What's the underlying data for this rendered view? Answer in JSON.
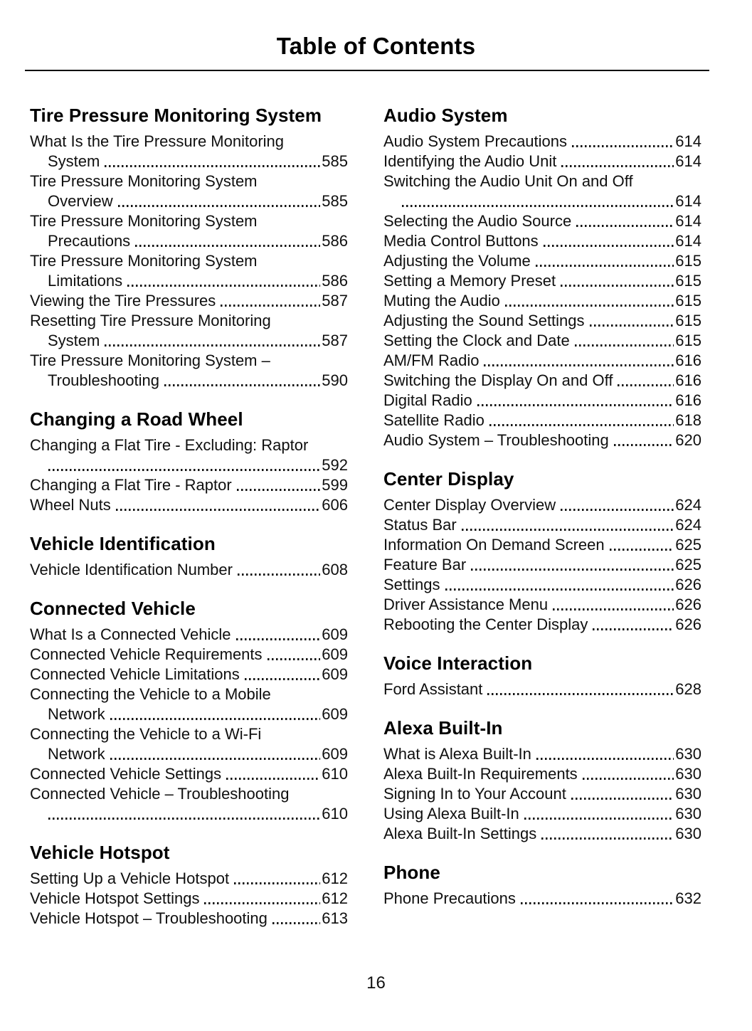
{
  "page": {
    "title": "Table of Contents",
    "page_number": "16"
  },
  "colors": {
    "text": "#0f0f0f",
    "background": "#ffffff",
    "rule": "#000000"
  },
  "toc": {
    "left": [
      {
        "heading": "Tire Pressure Monitoring System",
        "entries": [
          {
            "line1": "What Is the Tire Pressure Monitoring",
            "line2": "System",
            "wrapped": true,
            "page": "585"
          },
          {
            "line1": "Tire Pressure Monitoring System",
            "line2": "Overview",
            "wrapped": true,
            "page": "585"
          },
          {
            "line1": "Tire Pressure Monitoring System",
            "line2": "Precautions",
            "wrapped": true,
            "page": "586"
          },
          {
            "line1": "Tire Pressure Monitoring System",
            "line2": "Limitations",
            "wrapped": true,
            "page": "586"
          },
          {
            "line1": "Viewing the Tire Pressures",
            "line2": "",
            "wrapped": false,
            "page": "587"
          },
          {
            "line1": "Resetting Tire Pressure Monitoring",
            "line2": "System",
            "wrapped": true,
            "page": "587"
          },
          {
            "line1": "Tire Pressure Monitoring System –",
            "line2": "Troubleshooting",
            "wrapped": true,
            "page": "590"
          }
        ]
      },
      {
        "heading": "Changing a Road Wheel",
        "entries": [
          {
            "line1": "Changing a Flat Tire - Excluding: Raptor",
            "line2": "",
            "wrapped": true,
            "page": "592"
          },
          {
            "line1": "Changing a Flat Tire - Raptor",
            "line2": "",
            "wrapped": false,
            "page": "599"
          },
          {
            "line1": "Wheel Nuts",
            "line2": "",
            "wrapped": false,
            "page": "606"
          }
        ]
      },
      {
        "heading": "Vehicle Identification",
        "entries": [
          {
            "line1": "Vehicle Identification Number",
            "line2": "",
            "wrapped": false,
            "page": "608"
          }
        ]
      },
      {
        "heading": "Connected Vehicle",
        "entries": [
          {
            "line1": "What Is a Connected Vehicle",
            "line2": "",
            "wrapped": false,
            "page": "609"
          },
          {
            "line1": "Connected Vehicle Requirements",
            "line2": "",
            "wrapped": false,
            "page": "609"
          },
          {
            "line1": "Connected Vehicle Limitations",
            "line2": "",
            "wrapped": false,
            "page": "609"
          },
          {
            "line1": "Connecting the Vehicle to a Mobile",
            "line2": "Network",
            "wrapped": true,
            "page": "609"
          },
          {
            "line1": "Connecting the Vehicle to a Wi-Fi",
            "line2": "Network",
            "wrapped": true,
            "page": "609"
          },
          {
            "line1": "Connected Vehicle Settings",
            "line2": "",
            "wrapped": false,
            "page": "610"
          },
          {
            "line1": "Connected Vehicle – Troubleshooting",
            "line2": "",
            "wrapped": true,
            "page": "610"
          }
        ]
      },
      {
        "heading": "Vehicle Hotspot",
        "entries": [
          {
            "line1": "Setting Up a Vehicle Hotspot",
            "line2": "",
            "wrapped": false,
            "page": "612"
          },
          {
            "line1": "Vehicle Hotspot Settings",
            "line2": "",
            "wrapped": false,
            "page": "612"
          },
          {
            "line1": "Vehicle Hotspot – Troubleshooting",
            "line2": "",
            "wrapped": false,
            "page": "613"
          }
        ]
      }
    ],
    "right": [
      {
        "heading": "Audio System",
        "entries": [
          {
            "line1": "Audio System Precautions",
            "line2": "",
            "wrapped": false,
            "page": "614"
          },
          {
            "line1": "Identifying the Audio Unit",
            "line2": "",
            "wrapped": false,
            "page": "614"
          },
          {
            "line1": "Switching the Audio Unit On and Off",
            "line2": "",
            "wrapped": true,
            "page": "614"
          },
          {
            "line1": "Selecting the Audio Source",
            "line2": "",
            "wrapped": false,
            "page": "614"
          },
          {
            "line1": "Media Control Buttons",
            "line2": "",
            "wrapped": false,
            "page": "614"
          },
          {
            "line1": "Adjusting the Volume",
            "line2": "",
            "wrapped": false,
            "page": "615"
          },
          {
            "line1": "Setting a Memory Preset",
            "line2": "",
            "wrapped": false,
            "page": "615"
          },
          {
            "line1": "Muting the Audio",
            "line2": "",
            "wrapped": false,
            "page": "615"
          },
          {
            "line1": "Adjusting the Sound Settings",
            "line2": "",
            "wrapped": false,
            "page": "615"
          },
          {
            "line1": "Setting the Clock and Date",
            "line2": "",
            "wrapped": false,
            "page": "615"
          },
          {
            "line1": "AM/FM Radio",
            "line2": "",
            "wrapped": false,
            "page": "616"
          },
          {
            "line1": "Switching the Display On and Off",
            "line2": "",
            "wrapped": false,
            "page": "616"
          },
          {
            "line1": "Digital Radio",
            "line2": "",
            "wrapped": false,
            "page": "616"
          },
          {
            "line1": "Satellite Radio",
            "line2": "",
            "wrapped": false,
            "page": "618"
          },
          {
            "line1": "Audio System – Troubleshooting",
            "line2": "",
            "wrapped": false,
            "page": "620"
          }
        ]
      },
      {
        "heading": "Center Display",
        "entries": [
          {
            "line1": "Center Display Overview",
            "line2": "",
            "wrapped": false,
            "page": "624"
          },
          {
            "line1": "Status Bar",
            "line2": "",
            "wrapped": false,
            "page": "624"
          },
          {
            "line1": "Information On Demand Screen",
            "line2": "",
            "wrapped": false,
            "page": "625"
          },
          {
            "line1": "Feature Bar",
            "line2": "",
            "wrapped": false,
            "page": "625"
          },
          {
            "line1": "Settings",
            "line2": "",
            "wrapped": false,
            "page": "626"
          },
          {
            "line1": "Driver Assistance Menu",
            "line2": "",
            "wrapped": false,
            "page": "626"
          },
          {
            "line1": "Rebooting the Center Display",
            "line2": "",
            "wrapped": false,
            "page": "626"
          }
        ]
      },
      {
        "heading": "Voice Interaction",
        "entries": [
          {
            "line1": "Ford Assistant",
            "line2": "",
            "wrapped": false,
            "page": "628"
          }
        ]
      },
      {
        "heading": "Alexa Built-In",
        "entries": [
          {
            "line1": "What is Alexa Built-In",
            "line2": "",
            "wrapped": false,
            "page": "630"
          },
          {
            "line1": "Alexa Built-In Requirements",
            "line2": "",
            "wrapped": false,
            "page": "630"
          },
          {
            "line1": "Signing In to Your Account",
            "line2": "",
            "wrapped": false,
            "page": "630"
          },
          {
            "line1": "Using Alexa Built-In",
            "line2": "",
            "wrapped": false,
            "page": "630"
          },
          {
            "line1": "Alexa Built-In Settings",
            "line2": "",
            "wrapped": false,
            "page": "630"
          }
        ]
      },
      {
        "heading": "Phone",
        "entries": [
          {
            "line1": "Phone Precautions",
            "line2": "",
            "wrapped": false,
            "page": "632"
          }
        ]
      }
    ]
  }
}
